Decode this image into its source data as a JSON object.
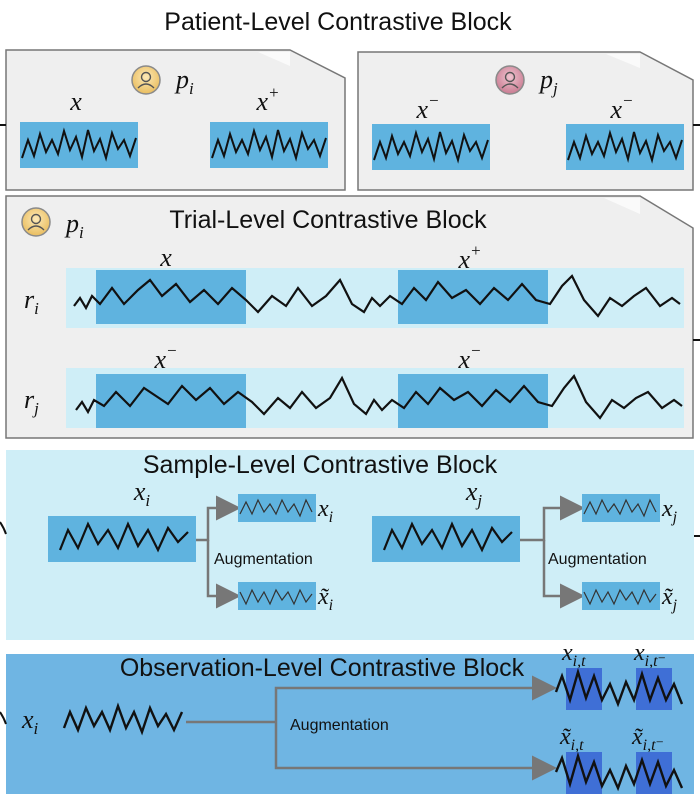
{
  "colors": {
    "panel_gray": "#efefef",
    "panel_border": "#777777",
    "light_cyan": "#cfeef7",
    "mid_blue": "#5fb3df",
    "obs_blue": "#6fb5e3",
    "dark_blue": "#3f6fd6",
    "patient_yellow": "#f3d28a",
    "patient_pink": "#d89aab"
  },
  "patient_block": {
    "title": "Patient-Level Contrastive Block",
    "left": {
      "patient": "p",
      "patient_sub": "i",
      "x1": "x",
      "x2": "x",
      "x2_sup": "+"
    },
    "right": {
      "patient": "p",
      "patient_sub": "j",
      "x1": "x",
      "x1_sup": "−",
      "x2": "x",
      "x2_sup": "−"
    }
  },
  "trial_block": {
    "title": "Trial-Level Contrastive  Block",
    "patient": "p",
    "patient_sub": "i",
    "row1": {
      "label": "r",
      "label_sub": "i",
      "seg1": "x",
      "seg2": "x",
      "seg2_sup": "+"
    },
    "row2": {
      "label": "r",
      "label_sub": "j",
      "seg1": "x",
      "seg1_sup": "−",
      "seg2": "x",
      "seg2_sup": "−"
    }
  },
  "sample_block": {
    "title": "Sample-Level Contrastive Block",
    "left": {
      "input": "x",
      "input_sub": "i",
      "out1": "x",
      "out1_sub": "i",
      "out2": "x̃",
      "out2_sub": "i",
      "aug": "Augmentation"
    },
    "right": {
      "input": "x",
      "input_sub": "j",
      "out1": "x",
      "out1_sub": "j",
      "out2": "x̃",
      "out2_sub": "j",
      "aug": "Augmentation"
    }
  },
  "observation_block": {
    "title": "Observation-Level Contrastive Block",
    "input": "x",
    "input_sub": "i",
    "aug": "Augmentation",
    "top_a": "x",
    "top_a_sub": "i,t",
    "top_b": "x",
    "top_b_sub": "i,t⁻",
    "bot_a": "x̃",
    "bot_a_sub": "i,t",
    "bot_b": "x̃",
    "bot_b_sub": "i,t⁻"
  }
}
